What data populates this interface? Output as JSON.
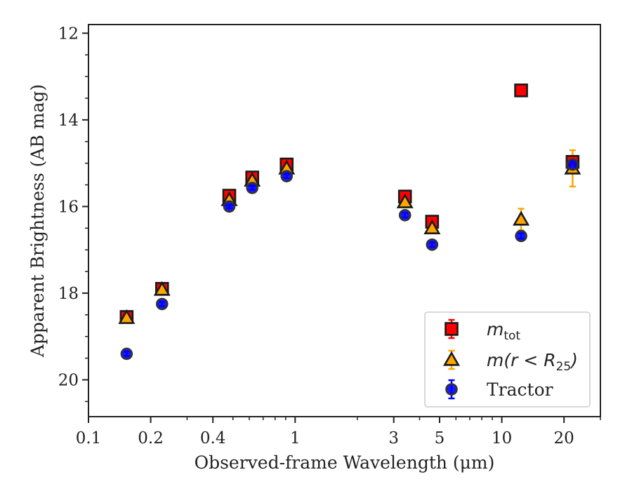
{
  "chart_data": {
    "type": "scatter",
    "xlabel": "Observed-frame Wavelength (μm)",
    "ylabel": "Apparent Brightness (AB mag)",
    "xscale": "log",
    "xlim": [
      0.1,
      30
    ],
    "ylim": [
      20.85,
      11.8
    ],
    "y_inverted": true,
    "x_ticks": [
      {
        "value": 0.1,
        "label": "0.1"
      },
      {
        "value": 0.2,
        "label": "0.2"
      },
      {
        "value": 0.4,
        "label": "0.4"
      },
      {
        "value": 1,
        "label": "1"
      },
      {
        "value": 3,
        "label": "3"
      },
      {
        "value": 5,
        "label": "5"
      },
      {
        "value": 10,
        "label": "10"
      },
      {
        "value": 20,
        "label": "20"
      }
    ],
    "y_ticks": [
      {
        "value": 12,
        "label": "12"
      },
      {
        "value": 14,
        "label": "14"
      },
      {
        "value": 16,
        "label": "16"
      },
      {
        "value": 18,
        "label": "18"
      },
      {
        "value": 20,
        "label": "20"
      }
    ],
    "grid": false,
    "legend_position": "lower-right",
    "series": [
      {
        "name": "m_tot",
        "legend_main": "m",
        "legend_sub": "tot",
        "marker": "square",
        "color": "#ff0000",
        "edge_color": "#1a1a1a",
        "error_color": "#ff0000",
        "points": [
          {
            "x": 0.153,
            "y": 18.55,
            "err": 0.05
          },
          {
            "x": 0.227,
            "y": 17.9,
            "err": 0.05
          },
          {
            "x": 0.48,
            "y": 15.75,
            "err": 0.04
          },
          {
            "x": 0.62,
            "y": 15.33,
            "err": 0.04
          },
          {
            "x": 0.91,
            "y": 15.03,
            "err": 0.04
          },
          {
            "x": 3.4,
            "y": 15.77,
            "err": 0.04
          },
          {
            "x": 4.6,
            "y": 16.35,
            "err": 0.04
          },
          {
            "x": 12.4,
            "y": 13.32,
            "err": 0.03
          },
          {
            "x": 22,
            "y": 14.97,
            "err": 0.04
          }
        ]
      },
      {
        "name": "m(r<R25)",
        "legend_main": "m(r < R",
        "legend_sub": "25",
        "legend_tail": ")",
        "marker": "triangle",
        "color": "#ffa500",
        "edge_color": "#1a1a1a",
        "error_color": "#ffa500",
        "points": [
          {
            "x": 0.153,
            "y": 18.57,
            "err": 0.05
          },
          {
            "x": 0.227,
            "y": 17.92,
            "err": 0.05
          },
          {
            "x": 0.48,
            "y": 15.85,
            "err": 0.04
          },
          {
            "x": 0.62,
            "y": 15.4,
            "err": 0.04
          },
          {
            "x": 0.91,
            "y": 15.12,
            "err": 0.04
          },
          {
            "x": 3.4,
            "y": 15.9,
            "err": 0.05
          },
          {
            "x": 4.6,
            "y": 16.5,
            "err": 0.05
          },
          {
            "x": 12.4,
            "y": 16.3,
            "err": 0.25
          },
          {
            "x": 22,
            "y": 15.12,
            "err": 0.42
          }
        ]
      },
      {
        "name": "Tractor",
        "legend_main": "Tractor",
        "marker": "circle",
        "color": "#0000ff",
        "edge_color": "#333333",
        "error_color": "#0000ff",
        "points": [
          {
            "x": 0.153,
            "y": 19.4,
            "err": 0.05
          },
          {
            "x": 0.227,
            "y": 18.25,
            "err": 0.05
          },
          {
            "x": 0.48,
            "y": 16.0,
            "err": 0.04
          },
          {
            "x": 0.62,
            "y": 15.57,
            "err": 0.04
          },
          {
            "x": 0.91,
            "y": 15.3,
            "err": 0.04
          },
          {
            "x": 3.4,
            "y": 16.2,
            "err": 0.05
          },
          {
            "x": 4.6,
            "y": 16.88,
            "err": 0.05
          },
          {
            "x": 12.4,
            "y": 16.68,
            "err": 0.06
          },
          {
            "x": 22,
            "y": 15.03,
            "err": 0.08
          }
        ]
      }
    ]
  }
}
